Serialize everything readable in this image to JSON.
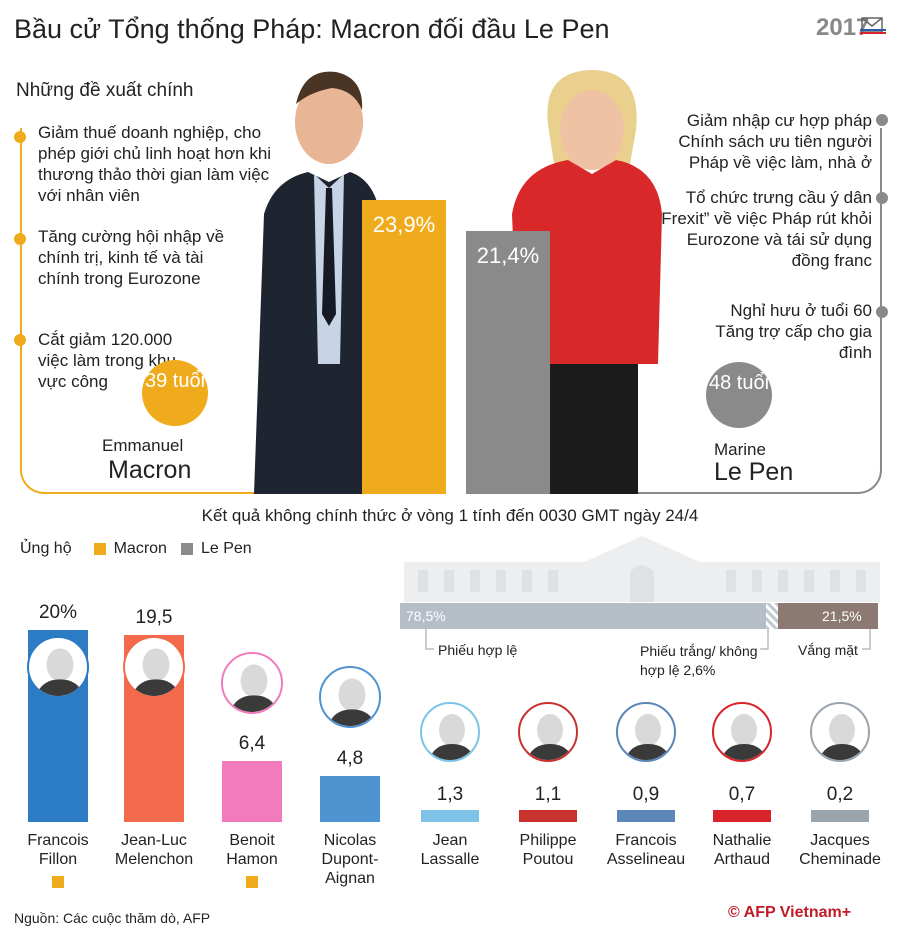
{
  "title": "Bầu cử Tổng thống Pháp: Macron đối đầu Le Pen",
  "year_badge": "2017",
  "proposals_heading": "Những đề xuất chính",
  "macron_proposals": [
    "Giảm thuế doanh nghiệp, cho phép giới chủ linh hoạt hơn khi thương thảo thời gian làm việc với nhân viên",
    "Tăng cường hội nhập về chính trị, kinh tế và tài chính trong Eurozone",
    "Cắt giảm 120.000 việc làm trong khu vực công"
  ],
  "lepen_proposals": [
    "Giảm nhập cư hợp pháp Chính sách ưu tiên người Pháp về việc làm, nhà ở",
    "Tổ chức trưng cầu ý dân “Frexit” về việc Pháp rút khỏi Eurozone và tái sử dụng đồng franc",
    "Nghỉ hưu ở tuổi 60 Tăng trợ cấp cho gia đình"
  ],
  "macron": {
    "first": "Emmanuel",
    "last": "Macron",
    "age": "39 tuổi",
    "share_label": "23,9%",
    "share": 23.9,
    "color": "#f0ab1c"
  },
  "lepen": {
    "first": "Marine",
    "last": "Le Pen",
    "age": "48 tuổi",
    "share_label": "21,4%",
    "share": 21.4,
    "color": "#8a8a8a"
  },
  "results_note": "Kết quả không chính thức ở vòng 1 tính đến 0030 GMT ngày 24/4",
  "legend": {
    "label": "Ủng hộ",
    "macron": "Macron",
    "lepen": "Le Pen"
  },
  "turnout": {
    "valid_label": "78,5%",
    "abstain_label": "21,5%",
    "valid_note": "Phiếu hợp lệ",
    "blank_note": "Phiếu trắng/ không hợp lệ 2,6%",
    "abstain_note": "Vắng mặt"
  },
  "chart_data": {
    "type": "bar",
    "categories": [
      "Francois Fillon",
      "Jean-Luc Melenchon",
      "Benoit Hamon",
      "Nicolas Dupont-Aignan",
      "Jean Lassalle",
      "Philippe Poutou",
      "Francois Asselineau",
      "Nathalie Arthaud",
      "Jacques Cheminade"
    ],
    "values": [
      20,
      19.5,
      6.4,
      4.8,
      1.3,
      1.1,
      0.9,
      0.7,
      0.2
    ],
    "value_labels": [
      "20%",
      "19,5",
      "6,4",
      "4,8",
      "1,3",
      "1,1",
      "0,9",
      "0,7",
      "0,2"
    ],
    "names": [
      [
        "Francois",
        "Fillon"
      ],
      [
        "Jean-Luc",
        "Melenchon"
      ],
      [
        "Benoit",
        "Hamon"
      ],
      [
        "Nicolas",
        "Dupont-",
        "Aignan"
      ],
      [
        "Jean",
        "Lassalle"
      ],
      [
        "Philippe",
        "Poutou"
      ],
      [
        "Francois",
        "Asselineau"
      ],
      [
        "Nathalie",
        "Arthaud"
      ],
      [
        "Jacques",
        "Cheminade"
      ]
    ],
    "colors": [
      "#2b7cc4",
      "#f26a4b",
      "#f27bbd",
      "#4f94d1",
      "#7dc3e8",
      "#c8342d",
      "#5a86b8",
      "#d8232a",
      "#9aa4ad"
    ],
    "supports": [
      "Macron",
      "",
      "Macron",
      "",
      "",
      "",
      "",
      "",
      ""
    ],
    "turnout_stack": [
      {
        "label": "Phiếu hợp lệ",
        "value": 78.5
      },
      {
        "label": "Phiếu trắng/ không hợp lệ",
        "value": 2.6
      },
      {
        "label": "Vắng mặt",
        "value": 21.5
      }
    ]
  },
  "footer": {
    "source": "Nguồn: Các cuộc thăm dò, AFP",
    "credit": "© AFP Vietnam+"
  }
}
